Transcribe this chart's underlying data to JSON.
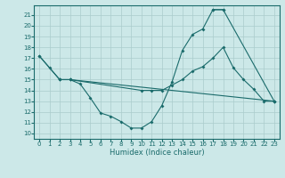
{
  "xlabel": "Humidex (Indice chaleur)",
  "xlim": [
    -0.5,
    23.5
  ],
  "ylim": [
    9.5,
    21.9
  ],
  "xticks": [
    0,
    1,
    2,
    3,
    4,
    5,
    6,
    7,
    8,
    9,
    10,
    11,
    12,
    13,
    14,
    15,
    16,
    17,
    18,
    19,
    20,
    21,
    22,
    23
  ],
  "yticks": [
    10,
    11,
    12,
    13,
    14,
    15,
    16,
    17,
    18,
    19,
    20,
    21
  ],
  "background_color": "#cce8e8",
  "grid_color": "#aacccc",
  "line_color": "#1a6b6b",
  "curve1_x": [
    0,
    1,
    2,
    3,
    4,
    5,
    6,
    7,
    8,
    9,
    10,
    11,
    12,
    13,
    14,
    15,
    16,
    17,
    18
  ],
  "curve1_y": [
    17.2,
    16.1,
    15.0,
    15.0,
    14.6,
    13.3,
    11.9,
    11.6,
    11.1,
    10.5,
    10.5,
    11.1,
    12.6,
    14.8,
    17.7,
    19.2,
    19.7,
    21.5,
    21.5
  ],
  "curve2_x": [
    17,
    18,
    23
  ],
  "curve2_y": [
    21.5,
    21.5,
    13.0
  ],
  "curve3_x": [
    2,
    3,
    10,
    11,
    12,
    13,
    14,
    15,
    16,
    17,
    18,
    19,
    20,
    21,
    22,
    23
  ],
  "curve3_y": [
    15.0,
    15.0,
    14.0,
    14.0,
    14.0,
    14.5,
    15.0,
    15.8,
    16.2,
    17.0,
    18.0,
    16.1,
    15.0,
    14.1,
    13.0,
    13.0
  ],
  "curve4_x": [
    0,
    2,
    3,
    23
  ],
  "curve4_y": [
    17.2,
    15.0,
    15.0,
    13.0
  ],
  "tick_fontsize": 5,
  "xlabel_fontsize": 6
}
